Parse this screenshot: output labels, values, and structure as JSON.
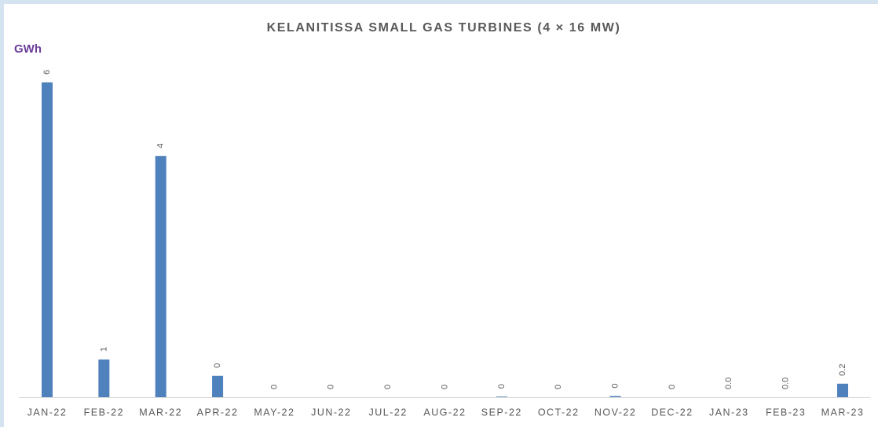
{
  "chart_data": {
    "type": "bar",
    "title": "KELANITISSA SMALL GAS TURBINES (4 × 16 MW)",
    "y_label": "GWh",
    "categories": [
      "JAN-22",
      "FEB-22",
      "MAR-22",
      "APR-22",
      "MAY-22",
      "JUN-22",
      "JUL-22",
      "AUG-22",
      "SEP-22",
      "OCT-22",
      "NOV-22",
      "DEC-22",
      "JAN-23",
      "FEB-23",
      "MAR-23"
    ],
    "values": [
      5.6,
      0.67,
      4.29,
      0.38,
      0,
      0,
      0,
      0,
      0.01,
      0,
      0.02,
      0,
      0,
      0,
      0.24
    ],
    "value_labels": [
      "6",
      "1",
      "4",
      "0",
      "0",
      "0",
      "0",
      "0",
      "0",
      "0",
      "0",
      "0",
      "0.0",
      "0.0",
      "0.2"
    ],
    "color": "#4f81bd"
  }
}
